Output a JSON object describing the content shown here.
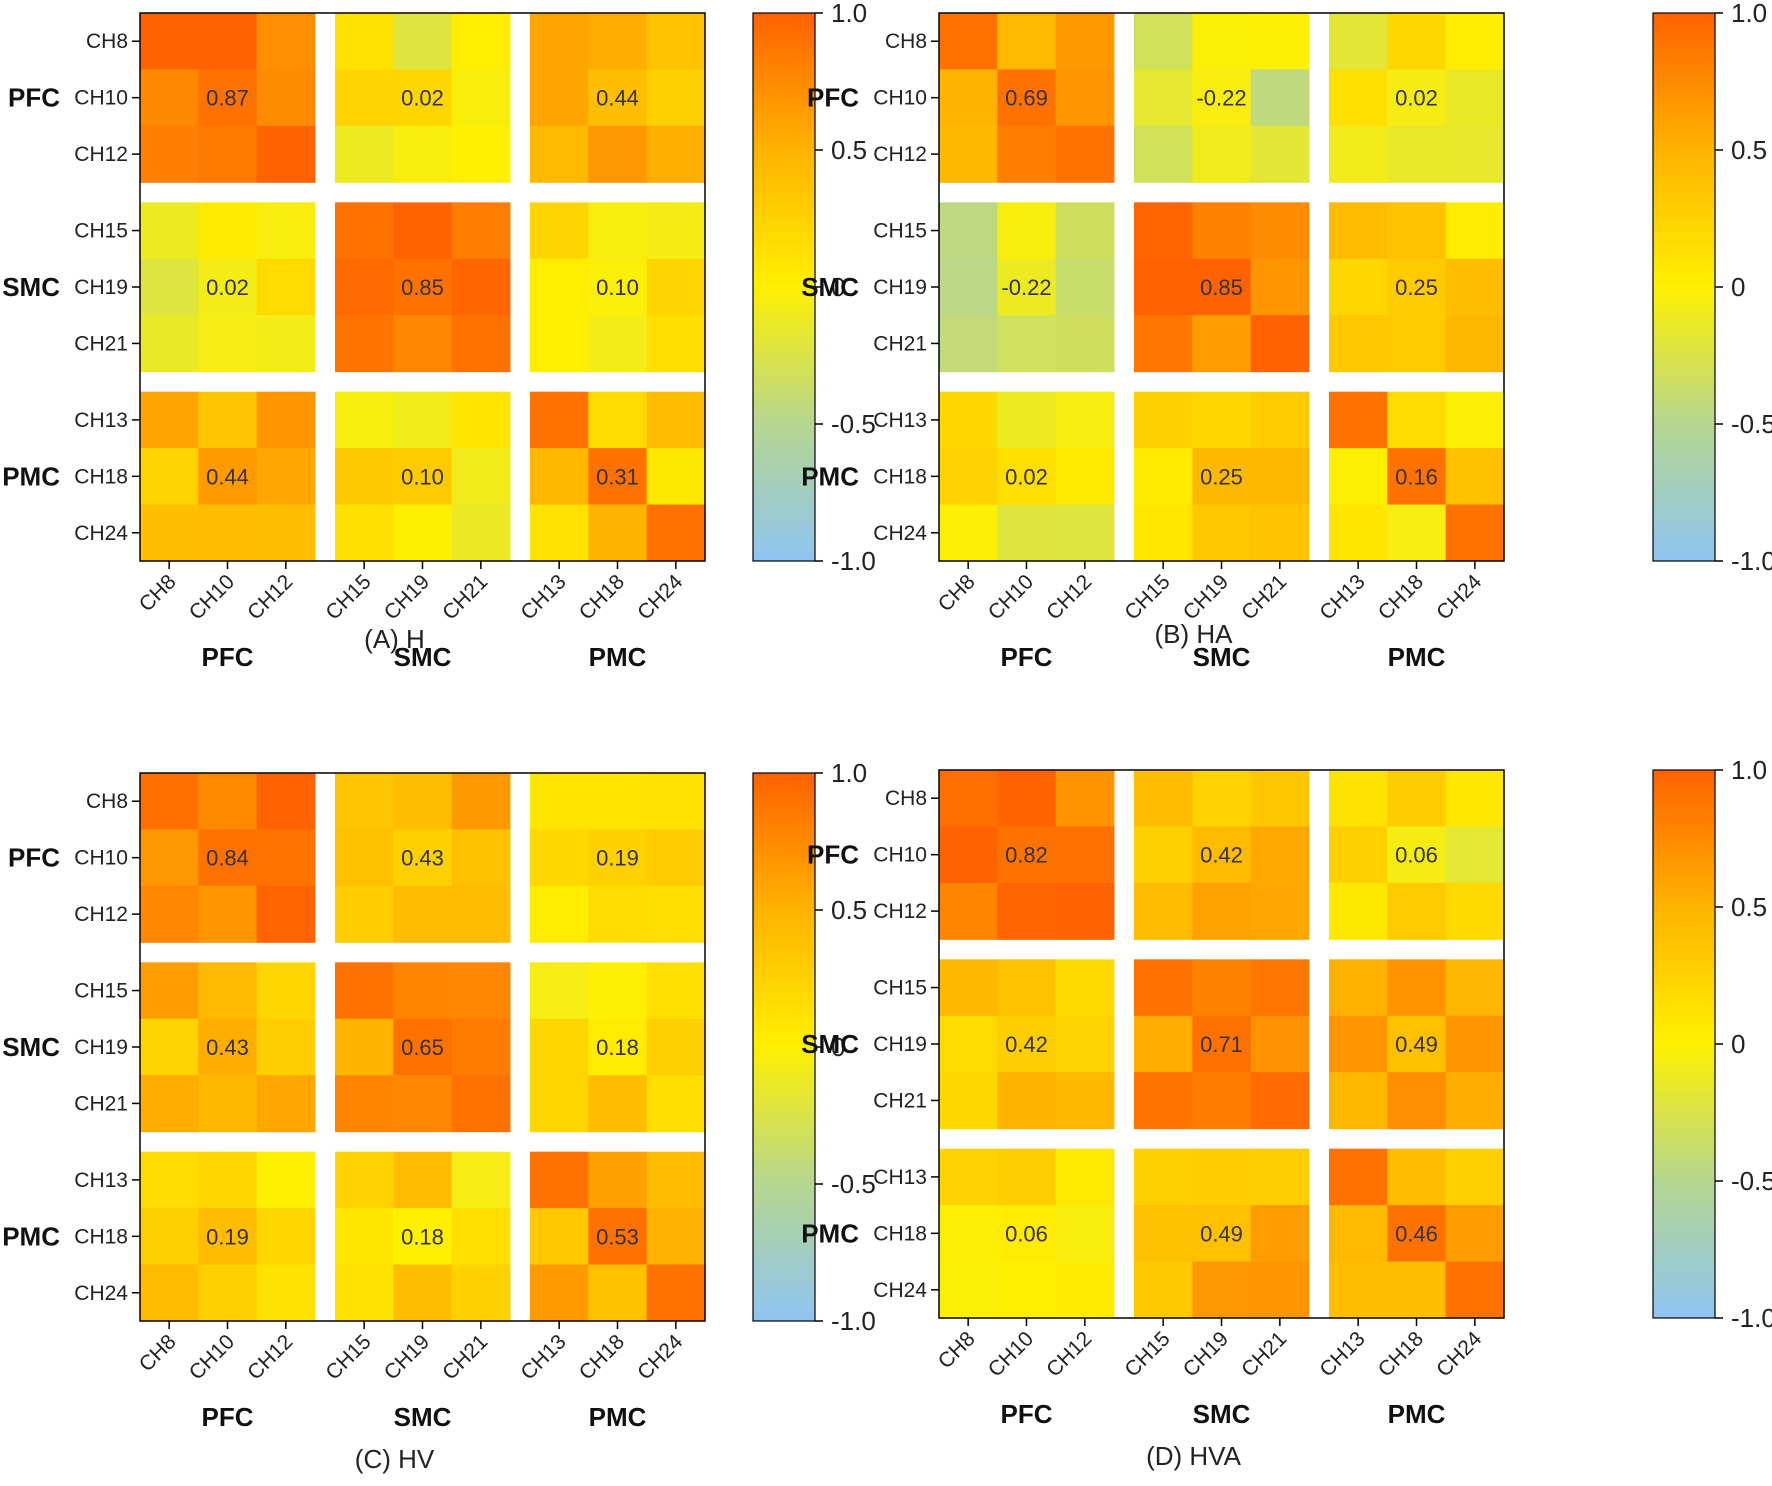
{
  "chart_data": [
    {
      "type": "heatmap",
      "caption": "(A) H",
      "row_regions": [
        "PFC",
        "SMC",
        "PMC"
      ],
      "col_regions": [
        "PFC",
        "SMC",
        "PMC"
      ],
      "row_labels": [
        "CH8",
        "CH10",
        "CH12",
        "CH15",
        "CH19",
        "CH21",
        "CH13",
        "CH18",
        "CH24"
      ],
      "col_labels": [
        "CH8",
        "CH10",
        "CH12",
        "CH15",
        "CH19",
        "CH21",
        "CH13",
        "CH18",
        "CH24"
      ],
      "block_values": [
        [
          "0.87",
          "0.02",
          "0.44"
        ],
        [
          "0.02",
          "0.85",
          "0.10"
        ],
        [
          "0.44",
          "0.10",
          "0.31"
        ]
      ],
      "colorbar": {
        "min": -1.0,
        "max": 1.0,
        "ticks": [
          "1.0",
          "0.5",
          "0",
          "-0.5",
          "-1.0"
        ]
      }
    },
    {
      "type": "heatmap",
      "caption": "(B) HA",
      "row_regions": [
        "PFC",
        "SMC",
        "PMC"
      ],
      "col_regions": [
        "PFC",
        "SMC",
        "PMC"
      ],
      "row_labels": [
        "CH8",
        "CH10",
        "CH12",
        "CH15",
        "CH19",
        "CH21",
        "CH13",
        "CH18",
        "CH24"
      ],
      "col_labels": [
        "CH8",
        "CH10",
        "CH12",
        "CH15",
        "CH19",
        "CH21",
        "CH13",
        "CH18",
        "CH24"
      ],
      "block_values": [
        [
          "0.69",
          "-0.22",
          "0.02"
        ],
        [
          "-0.22",
          "0.85",
          "0.25"
        ],
        [
          "0.02",
          "0.25",
          "0.16"
        ]
      ],
      "colorbar": {
        "min": -1.0,
        "max": 1.0,
        "ticks": [
          "1.0",
          "0.5",
          "0",
          "-0.5",
          "-1.0"
        ]
      }
    },
    {
      "type": "heatmap",
      "caption": "(C) HV",
      "row_regions": [
        "PFC",
        "SMC",
        "PMC"
      ],
      "col_regions": [
        "PFC",
        "SMC",
        "PMC"
      ],
      "row_labels": [
        "CH8",
        "CH10",
        "CH12",
        "CH15",
        "CH19",
        "CH21",
        "CH13",
        "CH18",
        "CH24"
      ],
      "col_labels": [
        "CH8",
        "CH10",
        "CH12",
        "CH15",
        "CH19",
        "CH21",
        "CH13",
        "CH18",
        "CH24"
      ],
      "block_values": [
        [
          "0.84",
          "0.43",
          "0.19"
        ],
        [
          "0.43",
          "0.65",
          "0.18"
        ],
        [
          "0.19",
          "0.18",
          "0.53"
        ]
      ],
      "colorbar": {
        "min": -1.0,
        "max": 1.0,
        "ticks": [
          "1.0",
          "0.5",
          "0",
          "-0.5",
          "-1.0"
        ]
      }
    },
    {
      "type": "heatmap",
      "caption": "(D) HVA",
      "row_regions": [
        "PFC",
        "SMC",
        "PMC"
      ],
      "col_regions": [
        "PFC",
        "SMC",
        "PMC"
      ],
      "row_labels": [
        "CH8",
        "CH10",
        "CH12",
        "CH15",
        "CH19",
        "CH21",
        "CH13",
        "CH18",
        "CH24"
      ],
      "col_labels": [
        "CH8",
        "CH10",
        "CH12",
        "CH15",
        "CH19",
        "CH21",
        "CH13",
        "CH18",
        "CH24"
      ],
      "block_values": [
        [
          "0.82",
          "0.42",
          "0.06"
        ],
        [
          "0.42",
          "0.71",
          "0.49"
        ],
        [
          "0.06",
          "0.49",
          "0.46"
        ]
      ],
      "colorbar": {
        "min": -1.0,
        "max": 1.0,
        "ticks": [
          "1.0",
          "0.5",
          "0",
          "-0.5",
          "-1.0"
        ]
      }
    }
  ],
  "colors": {
    "scale": [
      "#8fc4f2",
      "#b5d690",
      "#fff000",
      "#ffb300",
      "#ff6200"
    ],
    "grid_gap": "#ffffff",
    "frame": "#000000"
  }
}
